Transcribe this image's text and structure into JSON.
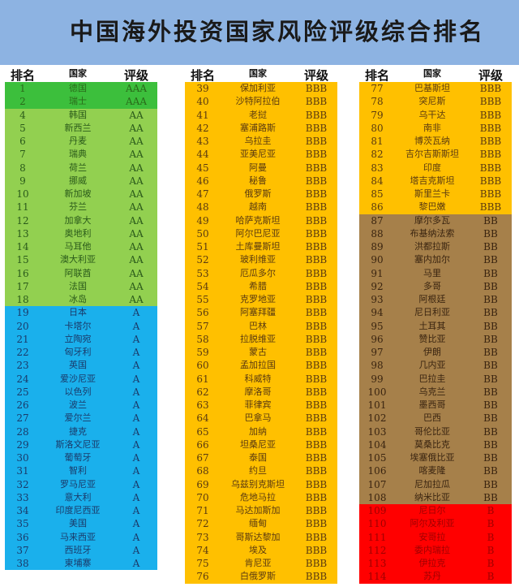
{
  "title": "中国海外投资国家风险评级综合排名",
  "headers": [
    "排名",
    "国家",
    "评级"
  ],
  "colors": {
    "AAA": "#3cbf3c",
    "AA": "#92d050",
    "A": "#1ab0ec",
    "BBB": "#ffc000",
    "BB": "#a6804a",
    "B": "#ff0000"
  },
  "text_colors": {
    "AAA": "#2a6a1a",
    "AA": "#2a5a1a",
    "A": "#1a3a6a",
    "BBB": "#5a3a10",
    "BB": "#3a2410",
    "B": "#a00000"
  },
  "columns": [
    [
      [
        "1",
        "德国",
        "AAA"
      ],
      [
        "2",
        "瑞士",
        "AAA"
      ],
      [
        "4",
        "韩国",
        "AA"
      ],
      [
        "5",
        "新西兰",
        "AA"
      ],
      [
        "6",
        "丹麦",
        "AA"
      ],
      [
        "7",
        "瑞典",
        "AA"
      ],
      [
        "8",
        "荷兰",
        "AA"
      ],
      [
        "9",
        "挪威",
        "AA"
      ],
      [
        "10",
        "新加坡",
        "AA"
      ],
      [
        "11",
        "芬兰",
        "AA"
      ],
      [
        "12",
        "加拿大",
        "AA"
      ],
      [
        "13",
        "奥地利",
        "AA"
      ],
      [
        "14",
        "马耳他",
        "AA"
      ],
      [
        "15",
        "澳大利亚",
        "AA"
      ],
      [
        "16",
        "阿联酋",
        "AA"
      ],
      [
        "17",
        "法国",
        "AA"
      ],
      [
        "18",
        "冰岛",
        "AA"
      ],
      [
        "19",
        "日本",
        "A"
      ],
      [
        "20",
        "卡塔尔",
        "A"
      ],
      [
        "21",
        "立陶宛",
        "A"
      ],
      [
        "22",
        "匈牙利",
        "A"
      ],
      [
        "23",
        "英国",
        "A"
      ],
      [
        "24",
        "爱沙尼亚",
        "A"
      ],
      [
        "25",
        "以色列",
        "A"
      ],
      [
        "26",
        "波兰",
        "A"
      ],
      [
        "27",
        "爱尔兰",
        "A"
      ],
      [
        "28",
        "捷克",
        "A"
      ],
      [
        "29",
        "斯洛文尼亚",
        "A"
      ],
      [
        "30",
        "葡萄牙",
        "A"
      ],
      [
        "31",
        "智利",
        "A"
      ],
      [
        "32",
        "罗马尼亚",
        "A"
      ],
      [
        "33",
        "意大利",
        "A"
      ],
      [
        "34",
        "印度尼西亚",
        "A"
      ],
      [
        "35",
        "美国",
        "A"
      ],
      [
        "36",
        "马来西亚",
        "A"
      ],
      [
        "37",
        "西班牙",
        "A"
      ],
      [
        "38",
        "柬埔寨",
        "A"
      ]
    ],
    [
      [
        "39",
        "保加利亚",
        "BBB"
      ],
      [
        "40",
        "沙特阿拉伯",
        "BBB"
      ],
      [
        "41",
        "老挝",
        "BBB"
      ],
      [
        "42",
        "塞浦路斯",
        "BBB"
      ],
      [
        "43",
        "乌拉圭",
        "BBB"
      ],
      [
        "44",
        "亚美尼亚",
        "BBB"
      ],
      [
        "45",
        "阿曼",
        "BBB"
      ],
      [
        "46",
        "秘鲁",
        "BBB"
      ],
      [
        "47",
        "俄罗斯",
        "BBB"
      ],
      [
        "48",
        "越南",
        "BBB"
      ],
      [
        "49",
        "哈萨克斯坦",
        "BBB"
      ],
      [
        "50",
        "阿尔巴尼亚",
        "BBB"
      ],
      [
        "51",
        "土库曼斯坦",
        "BBB"
      ],
      [
        "52",
        "玻利维亚",
        "BBB"
      ],
      [
        "53",
        "厄瓜多尔",
        "BBB"
      ],
      [
        "54",
        "希腊",
        "BBB"
      ],
      [
        "55",
        "克罗地亚",
        "BBB"
      ],
      [
        "56",
        "阿塞拜疆",
        "BBB"
      ],
      [
        "57",
        "巴林",
        "BBB"
      ],
      [
        "58",
        "拉脱维亚",
        "BBB"
      ],
      [
        "59",
        "蒙古",
        "BBB"
      ],
      [
        "60",
        "孟加拉国",
        "BBB"
      ],
      [
        "61",
        "科威特",
        "BBB"
      ],
      [
        "62",
        "摩洛哥",
        "BBB"
      ],
      [
        "63",
        "菲律宾",
        "BBB"
      ],
      [
        "64",
        "巴拿马",
        "BBB"
      ],
      [
        "65",
        "加纳",
        "BBB"
      ],
      [
        "66",
        "坦桑尼亚",
        "BBB"
      ],
      [
        "67",
        "泰国",
        "BBB"
      ],
      [
        "68",
        "约旦",
        "BBB"
      ],
      [
        "69",
        "乌兹别克斯坦",
        "BBB"
      ],
      [
        "70",
        "危地马拉",
        "BBB"
      ],
      [
        "71",
        "马达加斯加",
        "BBB"
      ],
      [
        "72",
        "缅甸",
        "BBB"
      ],
      [
        "73",
        "哥斯达黎加",
        "BBB"
      ],
      [
        "74",
        "埃及",
        "BBB"
      ],
      [
        "75",
        "肯尼亚",
        "BBB"
      ],
      [
        "76",
        "白俄罗斯",
        "BBB"
      ]
    ],
    [
      [
        "77",
        "巴基斯坦",
        "BBB"
      ],
      [
        "78",
        "突尼斯",
        "BBB"
      ],
      [
        "79",
        "乌干达",
        "BBB"
      ],
      [
        "80",
        "南非",
        "BBB"
      ],
      [
        "81",
        "博茨瓦纳",
        "BBB"
      ],
      [
        "82",
        "吉尔吉斯斯坦",
        "BBB"
      ],
      [
        "83",
        "印度",
        "BBB"
      ],
      [
        "84",
        "塔吉克斯坦",
        "BBB"
      ],
      [
        "85",
        "斯里兰卡",
        "BBB"
      ],
      [
        "86",
        "黎巴嫩",
        "BBB"
      ],
      [
        "87",
        "摩尔多瓦",
        "BB"
      ],
      [
        "88",
        "布基纳法索",
        "BB"
      ],
      [
        "89",
        "洪都拉斯",
        "BB"
      ],
      [
        "90",
        "塞内加尔",
        "BB"
      ],
      [
        "91",
        "马里",
        "BB"
      ],
      [
        "92",
        "多哥",
        "BB"
      ],
      [
        "93",
        "阿根廷",
        "BB"
      ],
      [
        "94",
        "尼日利亚",
        "BB"
      ],
      [
        "95",
        "土耳其",
        "BB"
      ],
      [
        "96",
        "赞比亚",
        "BB"
      ],
      [
        "97",
        "伊朗",
        "BB"
      ],
      [
        "98",
        "几内亚",
        "BB"
      ],
      [
        "99",
        "巴拉圭",
        "BB"
      ],
      [
        "100",
        "乌克兰",
        "BB"
      ],
      [
        "101",
        "墨西哥",
        "BB"
      ],
      [
        "102",
        "巴西",
        "BB"
      ],
      [
        "103",
        "哥伦比亚",
        "BB"
      ],
      [
        "104",
        "莫桑比克",
        "BB"
      ],
      [
        "105",
        "埃塞俄比亚",
        "BB"
      ],
      [
        "106",
        "喀麦隆",
        "BB"
      ],
      [
        "107",
        "尼加拉瓜",
        "BB"
      ],
      [
        "108",
        "纳米比亚",
        "BB"
      ],
      [
        "109",
        "尼日尔",
        "B"
      ],
      [
        "110",
        "阿尔及利亚",
        "B"
      ],
      [
        "111",
        "安哥拉",
        "B"
      ],
      [
        "112",
        "委内瑞拉",
        "B"
      ],
      [
        "113",
        "伊拉克",
        "B"
      ],
      [
        "114",
        "苏丹",
        "B"
      ]
    ]
  ]
}
